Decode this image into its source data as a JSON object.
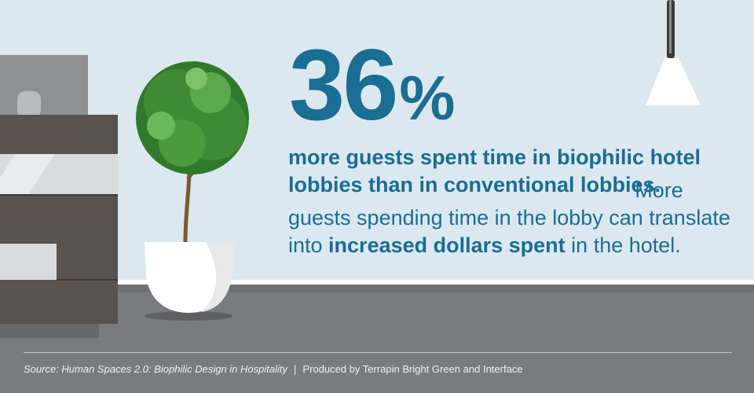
{
  "stat": {
    "number": "36",
    "unit": "%"
  },
  "text": {
    "headline": "more guests spent time in biophilic hotel lobbies than in conventional lobbies.",
    "body_plain_1": "More guests spending time in the lobby can translate into ",
    "body_bold": "increased dollars spent",
    "body_plain_2": " in the hotel."
  },
  "footer": {
    "source": "Source: Human Spaces 2.0: Biophilic Design in Hospitality",
    "separator": "|",
    "credit": "Produced by Terrapin Bright Green and Interface"
  },
  "colors": {
    "accent": "#1a6d93",
    "wall": "#dce8f0",
    "floor": "#7a7b7e",
    "leaf": "#3f8a34",
    "trunk": "#7a5a2e",
    "planter": "#ffffff",
    "desk_dark": "#5a524e",
    "desk_light": "#d8dadd"
  },
  "icons": {
    "plant": "potted-topiary-tree-illustration",
    "lamp": "pendant-lamp-illustration",
    "desk": "reception-desk-illustration"
  }
}
